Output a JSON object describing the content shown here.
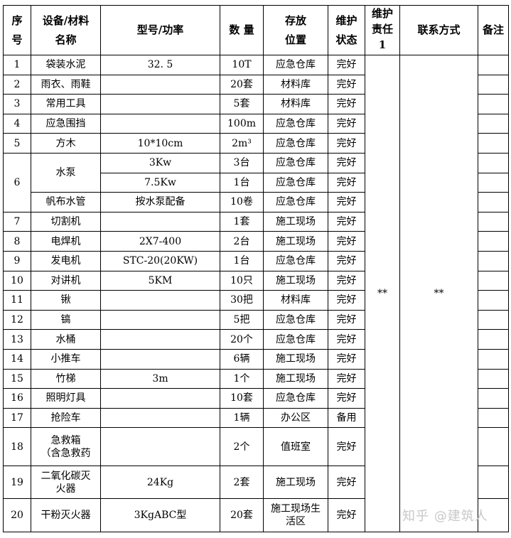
{
  "headers": {
    "no": "序\n号",
    "name": "设备/材料\n名称",
    "model": "型号/功率",
    "qty": "数 量",
    "loc": "存放\n位置",
    "status": "维护\n状态",
    "resp": "维护\n责任\n1",
    "contact": "联系方式",
    "remark": "备注"
  },
  "rows": [
    {
      "no": "1",
      "name": "袋装水泥",
      "model": "32. 5",
      "qty": "10T",
      "loc": "应急仓库",
      "status": "完好"
    },
    {
      "no": "2",
      "name": "雨衣、雨鞋",
      "model": "",
      "qty": "20套",
      "loc": "材料库",
      "status": "完好"
    },
    {
      "no": "3",
      "name": "常用工具",
      "model": "",
      "qty": "5套",
      "loc": "材料库",
      "status": "完好"
    },
    {
      "no": "4",
      "name": "应急围挡",
      "model": "",
      "qty": "100m",
      "loc": "应急仓库",
      "status": "完好"
    },
    {
      "no": "5",
      "name": "方木",
      "model": "10*10cm",
      "qty": "2m³",
      "loc": "应急仓库",
      "status": "完好"
    },
    {
      "no": "6",
      "name": "水泵",
      "model": "3Kw",
      "qty": "3台",
      "loc": "应急仓库",
      "status": "完好"
    },
    {
      "no": "",
      "name": "",
      "model": "7.5Kw",
      "qty": "1台",
      "loc": "应急仓库",
      "status": "完好"
    },
    {
      "no": "",
      "name": "帆布水管",
      "model": "按水泵配备",
      "qty": "10卷",
      "loc": "应急仓库",
      "status": "完好"
    },
    {
      "no": "7",
      "name": "切割机",
      "model": "",
      "qty": "1套",
      "loc": "施工现场",
      "status": "完好"
    },
    {
      "no": "8",
      "name": "电焊机",
      "model": "2X7-400",
      "qty": "2台",
      "loc": "施工现场",
      "status": "完好"
    },
    {
      "no": "9",
      "name": "发电机",
      "model": "STC-20(20KW)",
      "qty": "1台",
      "loc": "应急仓库",
      "status": "完好"
    },
    {
      "no": "10",
      "name": "对讲机",
      "model": "5KM",
      "qty": "10只",
      "loc": "施工现场",
      "status": "完好"
    },
    {
      "no": "11",
      "name": "锹",
      "model": "",
      "qty": "30把",
      "loc": "材料库",
      "status": "完好"
    },
    {
      "no": "12",
      "name": "镐",
      "model": "",
      "qty": "5把",
      "loc": "应急仓库",
      "status": "完好"
    },
    {
      "no": "13",
      "name": "水桶",
      "model": "",
      "qty": "20个",
      "loc": "应急仓库",
      "status": "完好"
    },
    {
      "no": "14",
      "name": "小推车",
      "model": "",
      "qty": "6辆",
      "loc": "施工现场",
      "status": "完好"
    },
    {
      "no": "15",
      "name": "竹梯",
      "model": "3m",
      "qty": "1个",
      "loc": "施工现场",
      "status": "完好"
    },
    {
      "no": "16",
      "name": "照明灯具",
      "model": "",
      "qty": "10套",
      "loc": "应急仓库",
      "status": "完好"
    },
    {
      "no": "17",
      "name": "抢险车",
      "model": "",
      "qty": "1辆",
      "loc": "办公区",
      "status": "备用"
    },
    {
      "no": "18",
      "name": "急救箱\n（含急救药",
      "model": "",
      "qty": "2个",
      "loc": "值班室",
      "status": "完好"
    },
    {
      "no": "19",
      "name": "二氧化碳灭\n火器",
      "model": "24Kg",
      "qty": "2套",
      "loc": "施工现场",
      "status": "完好"
    },
    {
      "no": "20",
      "name": "干粉灭火器",
      "model": "3KgABC型",
      "qty": "20套",
      "loc": "施工现场生\n活区",
      "status": "完好"
    }
  ],
  "resp_value": "**",
  "contact_value": "**",
  "watermark": "知乎 @建筑人"
}
